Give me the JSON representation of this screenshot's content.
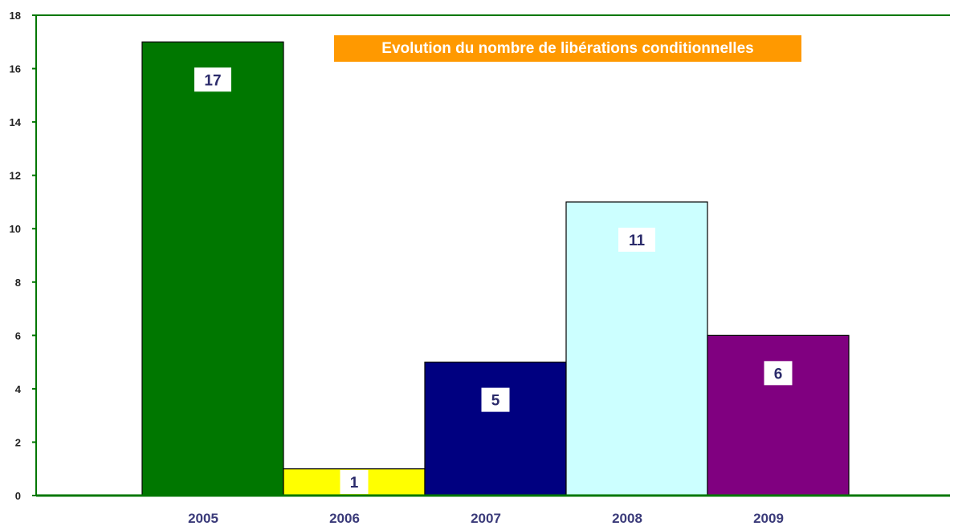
{
  "chart_data": {
    "type": "bar",
    "title": "Evolution du nombre de libérations conditionnelles",
    "categories": [
      "2005",
      "2006",
      "2007",
      "2008",
      "2009"
    ],
    "values": [
      17,
      1,
      5,
      11,
      6
    ],
    "value_labels": [
      "17",
      "1",
      "5",
      "11",
      "6"
    ],
    "bar_colors": [
      "#007700",
      "#ffff00",
      "#000080",
      "#ccffff",
      "#800080"
    ],
    "ylim": [
      0,
      18
    ],
    "yticks": [
      0,
      2,
      4,
      6,
      8,
      10,
      12,
      14,
      16,
      18
    ],
    "xlabel": "",
    "ylabel": "",
    "grid": false,
    "legend": "none",
    "title_background": "#ff9900",
    "axis_color": "#007700"
  }
}
